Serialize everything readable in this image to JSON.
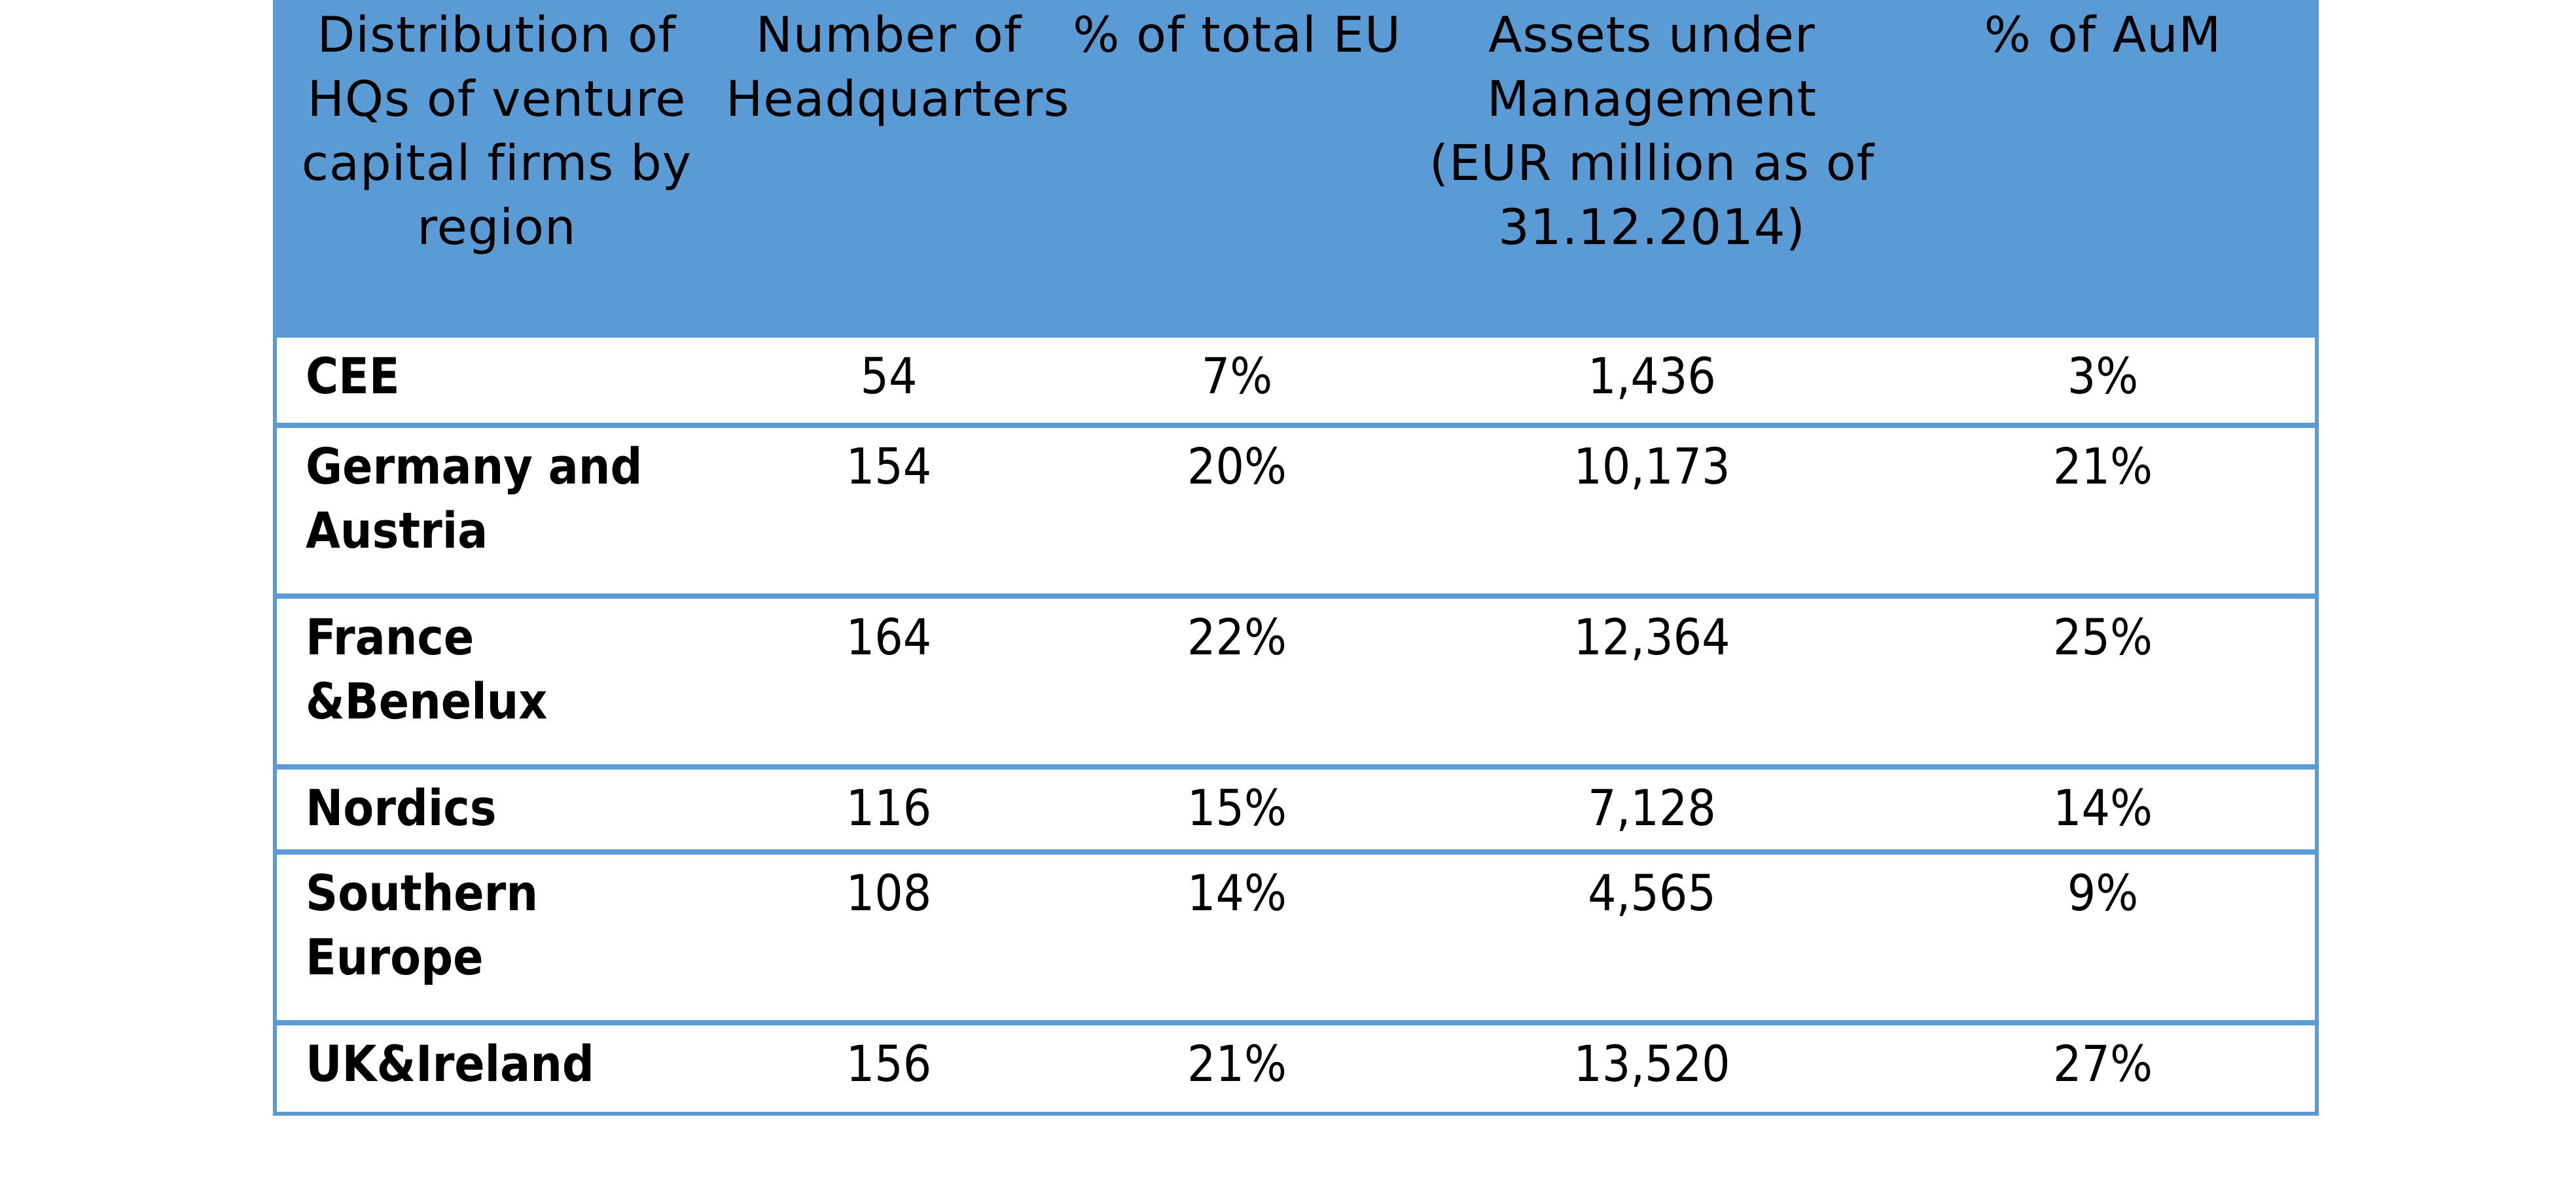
{
  "colors": {
    "header_background": "#5b9bd5",
    "grid_lines": "#5b9bd5",
    "text": "#000000",
    "page_background": "#ffffff"
  },
  "table": {
    "headers": [
      "Distribution of HQs of venture capital firms by region",
      "Number of Headquarters",
      "% of total EU",
      "Assets under Management (EUR million as of 31.12.2014)",
      "% of AuM"
    ],
    "rows": [
      {
        "region": "CEE",
        "headquarters": "54",
        "pct_total_eu": "7%",
        "aum": "1,436",
        "pct_aum": "3%"
      },
      {
        "region": "Germany and Austria",
        "headquarters": "154",
        "pct_total_eu": "20%",
        "aum": "10,173",
        "pct_aum": "21%"
      },
      {
        "region": "France &Benelux",
        "headquarters": "164",
        "pct_total_eu": "22%",
        "aum": "12,364",
        "pct_aum": "25%"
      },
      {
        "region": "Nordics",
        "headquarters": "116",
        "pct_total_eu": "15%",
        "aum": "7,128",
        "pct_aum": "14%"
      },
      {
        "region": "Southern Europe",
        "headquarters": "108",
        "pct_total_eu": "14%",
        "aum": "4,565",
        "pct_aum": "9%"
      },
      {
        "region": "UK&Ireland",
        "headquarters": "156",
        "pct_total_eu": "21%",
        "aum": "13,520",
        "pct_aum": "27%"
      }
    ]
  }
}
